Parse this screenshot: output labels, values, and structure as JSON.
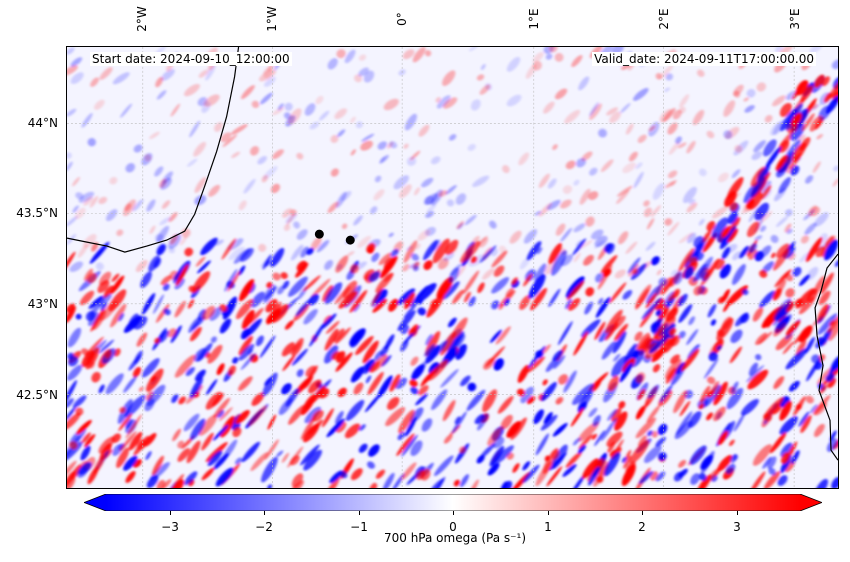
{
  "header": {
    "start_date": "Start date: 2024-09-10_12:00:00",
    "valid_date": "Valid_date: 2024-09-11T17:00:00.00"
  },
  "axes": {
    "lon_ticks": [
      "2°W",
      "1°W",
      "0°",
      "1°E",
      "2°E",
      "3°E"
    ],
    "lat_ticks": [
      "44°N",
      "43.5°N",
      "43°N",
      "42.5°N"
    ]
  },
  "map": {
    "variable": "700 hPa omega",
    "field_colormap": "bwr",
    "markers": [
      {
        "name": "point-1",
        "color": "#000000"
      },
      {
        "name": "point-2",
        "color": "#000000"
      }
    ]
  },
  "colorbar": {
    "label": "700 hPa omega (Pa s⁻¹)",
    "ticks": [
      "−3",
      "−2",
      "−1",
      "0",
      "1",
      "2",
      "3"
    ],
    "vmin": -3.6,
    "vmax": 3.6,
    "extend": "both",
    "colors": {
      "low": "#0000ff",
      "mid": "#ffffff",
      "high": "#ff0000"
    }
  }
}
